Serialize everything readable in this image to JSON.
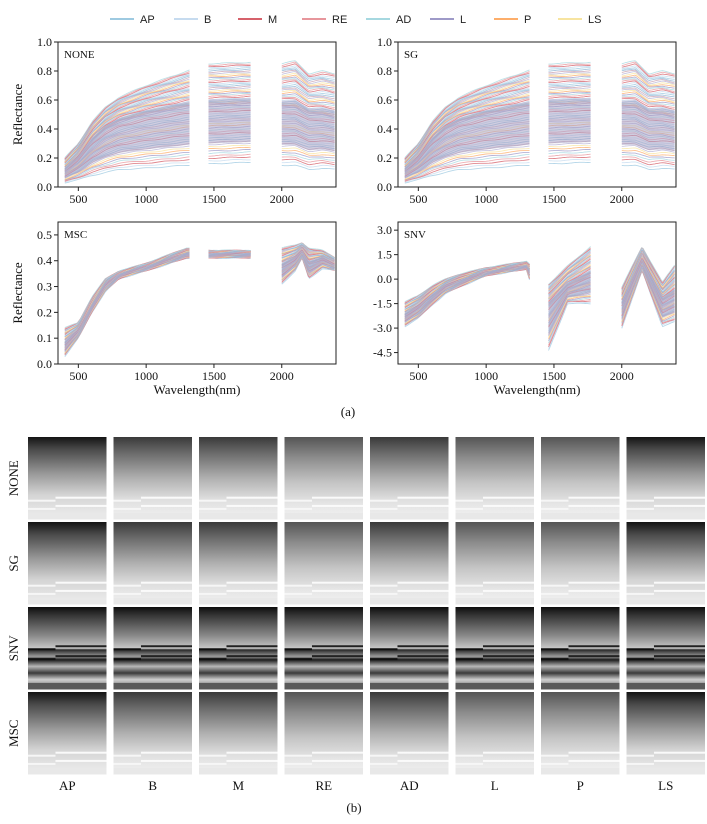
{
  "legend": [
    {
      "name": "AP",
      "color": "#9ecae1"
    },
    {
      "name": "B",
      "color": "#c6dbef"
    },
    {
      "name": "M",
      "color": "#d6616b"
    },
    {
      "name": "RE",
      "color": "#e7969c"
    },
    {
      "name": "AD",
      "color": "#a6d8e0"
    },
    {
      "name": "L",
      "color": "#9e9ac8"
    },
    {
      "name": "P",
      "color": "#fdae6b"
    },
    {
      "name": "LS",
      "color": "#f7e4a0"
    }
  ],
  "chart_data": [
    {
      "type": "line",
      "panel": "NONE",
      "xlabel": "",
      "ylabel": "Reflectance",
      "xlim": [
        350,
        2400
      ],
      "ylim": [
        0,
        1.0
      ],
      "xticks": [
        "500",
        "1000",
        "1500",
        "2000"
      ],
      "yticks": [
        "0.0",
        "0.2",
        "0.4",
        "0.6",
        "0.8",
        "1.0"
      ],
      "gaps": [
        [
          1320,
          1460
        ],
        [
          1770,
          2000
        ]
      ],
      "band": {
        "x": [
          400,
          500,
          600,
          700,
          800,
          1000,
          1300,
          1460,
          1770,
          2000,
          2100,
          2200,
          2300,
          2400
        ],
        "upper": [
          0.2,
          0.3,
          0.45,
          0.55,
          0.62,
          0.7,
          0.8,
          0.85,
          0.86,
          0.85,
          0.87,
          0.78,
          0.8,
          0.78
        ],
        "lower": [
          0.03,
          0.05,
          0.08,
          0.1,
          0.12,
          0.13,
          0.15,
          0.16,
          0.17,
          0.15,
          0.15,
          0.12,
          0.13,
          0.12
        ],
        "median": [
          0.12,
          0.2,
          0.32,
          0.4,
          0.45,
          0.5,
          0.55,
          0.56,
          0.57,
          0.55,
          0.55,
          0.5,
          0.5,
          0.48
        ]
      }
    },
    {
      "type": "line",
      "panel": "SG",
      "xlabel": "",
      "ylabel": "",
      "xlim": [
        350,
        2400
      ],
      "ylim": [
        0,
        1.0
      ],
      "xticks": [
        "500",
        "1000",
        "1500",
        "2000"
      ],
      "yticks": [
        "0.0",
        "0.2",
        "0.4",
        "0.6",
        "0.8",
        "1.0"
      ],
      "gaps": [
        [
          1320,
          1460
        ],
        [
          1770,
          2000
        ]
      ],
      "band": {
        "x": [
          400,
          500,
          600,
          700,
          800,
          1000,
          1300,
          1460,
          1770,
          2000,
          2100,
          2200,
          2300,
          2400
        ],
        "upper": [
          0.2,
          0.3,
          0.45,
          0.55,
          0.62,
          0.7,
          0.8,
          0.85,
          0.86,
          0.85,
          0.87,
          0.78,
          0.8,
          0.78
        ],
        "lower": [
          0.03,
          0.05,
          0.08,
          0.1,
          0.12,
          0.13,
          0.15,
          0.16,
          0.17,
          0.15,
          0.15,
          0.12,
          0.13,
          0.12
        ],
        "median": [
          0.12,
          0.2,
          0.32,
          0.4,
          0.45,
          0.5,
          0.55,
          0.56,
          0.57,
          0.55,
          0.55,
          0.5,
          0.5,
          0.48
        ]
      }
    },
    {
      "type": "line",
      "panel": "MSC",
      "xlabel": "Wavelength(nm)",
      "ylabel": "Reflectance",
      "xlim": [
        350,
        2400
      ],
      "ylim": [
        0,
        0.55
      ],
      "xticks": [
        "500",
        "1000",
        "1500",
        "2000"
      ],
      "yticks": [
        "0.0",
        "0.1",
        "0.2",
        "0.3",
        "0.4",
        "0.5"
      ],
      "gaps": [
        [
          1320,
          1460
        ],
        [
          1770,
          2000
        ]
      ],
      "band": {
        "x": [
          400,
          500,
          600,
          700,
          800,
          1000,
          1300,
          1460,
          1770,
          2000,
          2100,
          2150,
          2200,
          2300,
          2400
        ],
        "upper": [
          0.14,
          0.16,
          0.26,
          0.33,
          0.36,
          0.39,
          0.45,
          0.44,
          0.44,
          0.45,
          0.46,
          0.47,
          0.45,
          0.44,
          0.41
        ],
        "lower": [
          0.03,
          0.1,
          0.2,
          0.28,
          0.33,
          0.36,
          0.41,
          0.41,
          0.41,
          0.31,
          0.36,
          0.41,
          0.33,
          0.37,
          0.36
        ],
        "median": [
          0.08,
          0.13,
          0.23,
          0.31,
          0.35,
          0.38,
          0.43,
          0.43,
          0.43,
          0.38,
          0.41,
          0.44,
          0.39,
          0.41,
          0.38
        ]
      }
    },
    {
      "type": "line",
      "panel": "SNV",
      "xlabel": "Wavelength(nm)",
      "ylabel": "",
      "xlim": [
        350,
        2400
      ],
      "ylim": [
        -5.2,
        3.5
      ],
      "xticks": [
        "500",
        "1000",
        "1500",
        "2000"
      ],
      "yticks": [
        "-4.5",
        "-3.0",
        "-1.5",
        "0.0",
        "1.5",
        "3.0"
      ],
      "gaps": [
        [
          1320,
          1460
        ],
        [
          1770,
          2000
        ]
      ],
      "band": {
        "x": [
          400,
          500,
          600,
          700,
          800,
          1000,
          1300,
          1460,
          1600,
          1770,
          2000,
          2150,
          2300,
          2400
        ],
        "upper": [
          -1.4,
          -1.0,
          -0.4,
          0.0,
          0.3,
          0.7,
          1.1,
          -0.3,
          0.8,
          2.0,
          -0.5,
          2.0,
          -0.2,
          1.0
        ],
        "lower": [
          -2.9,
          -2.4,
          -1.6,
          -0.9,
          -0.5,
          0.2,
          0.6,
          -4.4,
          -1.5,
          -1.5,
          -3.0,
          0.5,
          -2.9,
          -2.6
        ],
        "median": [
          -2.2,
          -1.7,
          -1.0,
          -0.4,
          -0.1,
          0.45,
          0.85,
          -1.6,
          -0.4,
          0.3,
          -1.5,
          1.2,
          -1.3,
          -0.8
        ]
      }
    }
  ],
  "caption_a": "(a)",
  "caption_b": "(b)",
  "grid_rows": [
    "NONE",
    "SG",
    "SNV",
    "MSC"
  ],
  "grid_cols": [
    "AP",
    "B",
    "M",
    "RE",
    "AD",
    "L",
    "P",
    "LS"
  ]
}
